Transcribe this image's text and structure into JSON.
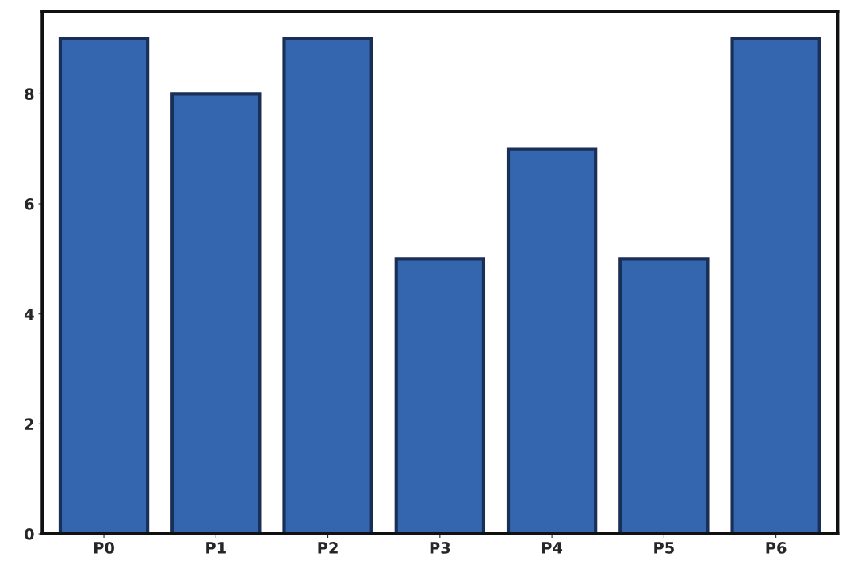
{
  "chart_data": {
    "type": "bar",
    "categories": [
      "P0",
      "P1",
      "P2",
      "P3",
      "P4",
      "P5",
      "P6"
    ],
    "values": [
      9,
      8,
      9,
      5,
      7,
      5,
      9
    ],
    "color": "#3466b0",
    "ylim": [
      0,
      9.5
    ],
    "yticks": [
      0,
      2,
      4,
      6,
      8
    ],
    "grid": false
  }
}
